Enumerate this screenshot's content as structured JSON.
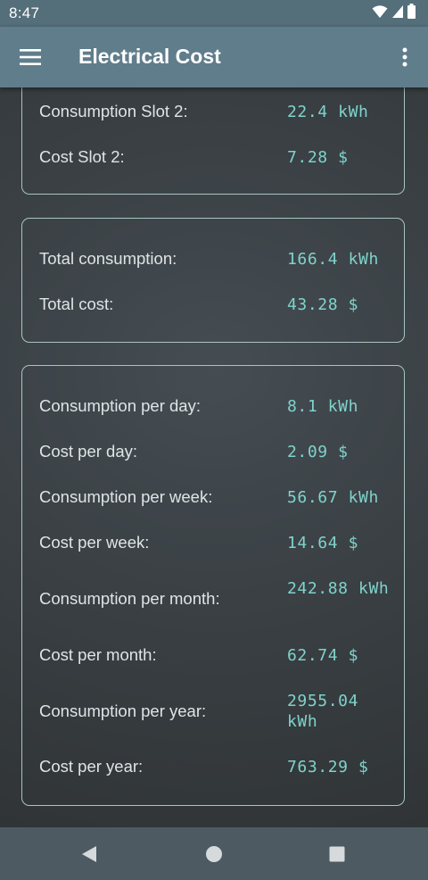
{
  "status_bar": {
    "time": "8:47"
  },
  "app_bar": {
    "title": "Electrical Cost",
    "menu_icon": "hamburger-menu-icon",
    "overflow_icon": "more-vert-icon"
  },
  "slot2_card": {
    "consumption_label": "Consumption Slot 2:",
    "consumption_value": "22.4 kWh",
    "cost_label": "Cost Slot 2:",
    "cost_value": "7.28 $"
  },
  "totals_card": {
    "consumption_label": "Total consumption:",
    "consumption_value": "166.4 kWh",
    "cost_label": "Total cost:",
    "cost_value": "43.28 $"
  },
  "period_card": {
    "rows": [
      {
        "label": "Consumption per day:",
        "value": "8.1 kWh"
      },
      {
        "label": "Cost per day:",
        "value": "2.09 $"
      },
      {
        "label": "Consumption per week:",
        "value": "56.67 kWh"
      },
      {
        "label": "Cost per week:",
        "value": "14.64 $"
      },
      {
        "label": "Consumption per month:",
        "value": "242.88 kWh"
      },
      {
        "label": "Cost per month:",
        "value": "62.74 $"
      },
      {
        "label": "Consumption per year:",
        "value": "2955.04 kWh"
      },
      {
        "label": "Cost per year:",
        "value": "763.29 $"
      }
    ]
  },
  "nav_bar": {
    "back_icon": "back-triangle-icon",
    "home_icon": "home-circle-icon",
    "recents_icon": "recents-square-icon"
  },
  "colors": {
    "app_bar": "#607d8b",
    "status_bar": "#546e7a",
    "value_text": "#7fd3cc",
    "card_border": "#a8c4c4"
  }
}
